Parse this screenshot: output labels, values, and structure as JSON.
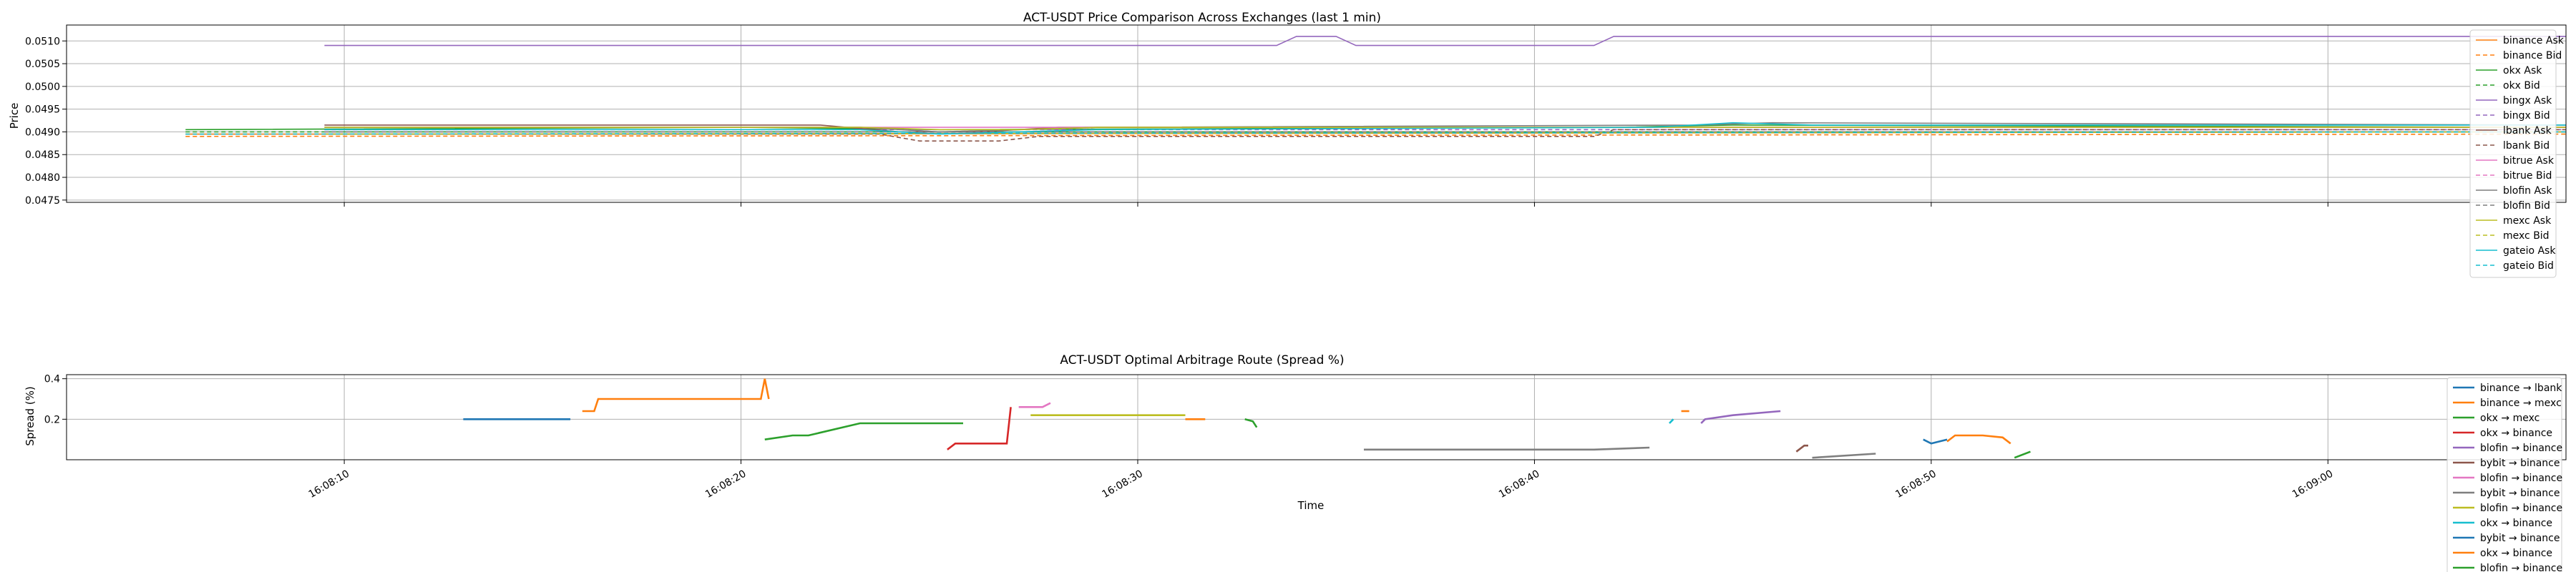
{
  "chart_data": [
    {
      "type": "line",
      "title": "ACT-USDT Price Comparison Across Exchanges (last 1 min)",
      "xlabel": "",
      "ylabel": "Price",
      "ylim": [
        0.04745,
        0.05135
      ],
      "yticks": [
        0.0475,
        0.048,
        0.0485,
        0.049,
        0.0495,
        0.05,
        0.0505,
        0.051
      ],
      "ytick_labels": [
        "0.0475",
        "0.0480",
        "0.0485",
        "0.0490",
        "0.0495",
        "0.0500",
        "0.0505",
        "0.0510"
      ],
      "xlim": [
        "16:08:03",
        "16:09:06"
      ],
      "grid": true,
      "legend": "right",
      "series": [
        {
          "name": "binance Ask",
          "color": "#ff7f0e",
          "dash": false,
          "points": [
            [
              "16:08:06",
              0.04895
            ],
            [
              "16:08:18",
              0.04895
            ],
            [
              "16:09:06",
              0.049
            ]
          ]
        },
        {
          "name": "binance Bid",
          "color": "#ff7f0e",
          "dash": true,
          "points": [
            [
              "16:08:06",
              0.0489
            ],
            [
              "16:09:06",
              0.04895
            ]
          ]
        },
        {
          "name": "okx Ask",
          "color": "#2ca02c",
          "dash": false,
          "points": [
            [
              "16:08:06",
              0.04905
            ],
            [
              "16:08:20",
              0.0491
            ],
            [
              "16:08:25",
              0.04905
            ],
            [
              "16:08:42",
              0.0491
            ],
            [
              "16:08:45",
              0.04915
            ],
            [
              "16:09:06",
              0.0491
            ]
          ]
        },
        {
          "name": "okx Bid",
          "color": "#2ca02c",
          "dash": true,
          "points": [
            [
              "16:08:06",
              0.049
            ],
            [
              "16:09:06",
              0.049
            ]
          ]
        },
        {
          "name": "bingx Ask",
          "color": "#9467bd",
          "dash": false,
          "points": [
            [
              "16:08:09.5",
              0.0509
            ],
            [
              "16:08:33.5",
              0.0509
            ],
            [
              "16:08:34",
              0.0511
            ],
            [
              "16:08:35",
              0.0511
            ],
            [
              "16:08:35.5",
              0.0509
            ],
            [
              "16:08:41.5",
              0.0509
            ],
            [
              "16:08:42",
              0.0511
            ],
            [
              "16:09:06",
              0.0511
            ]
          ]
        },
        {
          "name": "bingx Bid",
          "color": "#9467bd",
          "dash": true,
          "points": [
            [
              "16:08:09.5",
              0.04905
            ],
            [
              "16:09:06",
              0.04905
            ]
          ]
        },
        {
          "name": "lbank Ask",
          "color": "#8c564b",
          "dash": false,
          "points": [
            [
              "16:08:09.5",
              0.04915
            ],
            [
              "16:08:22",
              0.04915
            ],
            [
              "16:08:24",
              0.049
            ],
            [
              "16:08:26",
              0.049
            ],
            [
              "16:08:28",
              0.0491
            ],
            [
              "16:09:06",
              0.0491
            ]
          ]
        },
        {
          "name": "lbank Bid",
          "color": "#8c564b",
          "dash": true,
          "points": [
            [
              "16:08:09.5",
              0.04895
            ],
            [
              "16:08:23.5",
              0.04895
            ],
            [
              "16:08:24.5",
              0.0488
            ],
            [
              "16:08:26.5",
              0.0488
            ],
            [
              "16:08:27.5",
              0.0489
            ],
            [
              "16:08:41.5",
              0.0489
            ],
            [
              "16:08:42",
              0.04905
            ],
            [
              "16:09:06",
              0.04905
            ]
          ]
        },
        {
          "name": "bitrue Ask",
          "color": "#e377c2",
          "dash": false,
          "points": [
            [
              "16:08:09.5",
              0.0491
            ],
            [
              "16:09:06",
              0.0491
            ]
          ]
        },
        {
          "name": "bitrue Bid",
          "color": "#e377c2",
          "dash": true,
          "points": [
            [
              "16:08:09.5",
              0.049
            ],
            [
              "16:09:06",
              0.049
            ]
          ]
        },
        {
          "name": "blofin Ask",
          "color": "#7f7f7f",
          "dash": false,
          "points": [
            [
              "16:08:09.5",
              0.0491
            ],
            [
              "16:08:23",
              0.0491
            ],
            [
              "16:08:25",
              0.049
            ],
            [
              "16:08:27",
              0.04905
            ],
            [
              "16:08:29",
              0.0491
            ],
            [
              "16:08:44",
              0.04915
            ],
            [
              "16:08:46",
              0.0492
            ],
            [
              "16:09:06",
              0.04915
            ]
          ]
        },
        {
          "name": "blofin Bid",
          "color": "#7f7f7f",
          "dash": true,
          "points": [
            [
              "16:08:09.5",
              0.049
            ],
            [
              "16:09:06",
              0.049
            ]
          ]
        },
        {
          "name": "mexc Ask",
          "color": "#bcbd22",
          "dash": false,
          "points": [
            [
              "16:08:09.5",
              0.0491
            ],
            [
              "16:08:23",
              0.0491
            ],
            [
              "16:08:25",
              0.04905
            ],
            [
              "16:08:27",
              0.04905
            ],
            [
              "16:08:29",
              0.0491
            ],
            [
              "16:09:06",
              0.0491
            ]
          ]
        },
        {
          "name": "mexc Bid",
          "color": "#bcbd22",
          "dash": true,
          "points": [
            [
              "16:08:09.5",
              0.04895
            ],
            [
              "16:09:06",
              0.049
            ]
          ]
        },
        {
          "name": "gateio Ask",
          "color": "#17becf",
          "dash": false,
          "points": [
            [
              "16:08:09.5",
              0.04905
            ],
            [
              "16:08:23",
              0.04905
            ],
            [
              "16:08:25",
              0.04895
            ],
            [
              "16:08:27",
              0.049
            ],
            [
              "16:08:29",
              0.04905
            ],
            [
              "16:08:43",
              0.0491
            ],
            [
              "16:08:45",
              0.0492
            ],
            [
              "16:08:47",
              0.04915
            ],
            [
              "16:09:06",
              0.04915
            ]
          ]
        },
        {
          "name": "gateio Bid",
          "color": "#17becf",
          "dash": true,
          "points": [
            [
              "16:08:06",
              0.04895
            ],
            [
              "16:09:06",
              0.049
            ]
          ]
        }
      ]
    },
    {
      "type": "line",
      "title": "ACT-USDT Optimal Arbitrage Route (Spread %)",
      "xlabel": "Time",
      "ylabel": "Spread (%)",
      "ylim": [
        0.0,
        0.42
      ],
      "yticks": [
        0.2,
        0.4
      ],
      "ytick_labels": [
        "0.2",
        "0.4"
      ],
      "xlim": [
        "16:08:03",
        "16:09:06"
      ],
      "xticks": [
        "16:08:10",
        "16:08:20",
        "16:08:30",
        "16:08:40",
        "16:08:50",
        "16:09:00"
      ],
      "xtick_labels": [
        "16:08:10",
        "16:08:20",
        "16:08:30",
        "16:08:40",
        "16:08:50",
        "16:09:00"
      ],
      "grid": true,
      "legend": "right",
      "series": [
        {
          "name": "binance → lbank",
          "color": "#1f77b4",
          "segments": [
            [
              [
                "16:08:13.0",
                0.2
              ],
              [
                "16:08:15.7",
                0.2
              ]
            ]
          ]
        },
        {
          "name": "binance → mexc",
          "color": "#ff7f0e",
          "segments": [
            [
              [
                "16:08:16.0",
                0.24
              ],
              [
                "16:08:16.3",
                0.24
              ],
              [
                "16:08:16.4",
                0.3
              ],
              [
                "16:08:20.5",
                0.3
              ],
              [
                "16:08:20.6",
                0.4
              ],
              [
                "16:08:20.7",
                0.3
              ]
            ],
            [
              [
                "16:08:31.2",
                0.2
              ],
              [
                "16:08:31.7",
                0.2
              ]
            ]
          ]
        },
        {
          "name": "okx → mexc",
          "color": "#2ca02c",
          "segments": [
            [
              [
                "16:08:20.6",
                0.1
              ],
              [
                "16:08:21.3",
                0.12
              ],
              [
                "16:08:21.7",
                0.12
              ],
              [
                "16:08:23.0",
                0.18
              ],
              [
                "16:08:25.6",
                0.18
              ]
            ]
          ]
        },
        {
          "name": "okx → binance",
          "color": "#d62728",
          "segments": [
            [
              [
                "16:08:25.2",
                0.05
              ],
              [
                "16:08:25.4",
                0.08
              ],
              [
                "16:08:26.7",
                0.08
              ],
              [
                "16:08:26.8",
                0.26
              ]
            ]
          ]
        },
        {
          "name": "blofin → binance",
          "color": "#9467bd",
          "segments": [
            [
              [
                "16:08:44.2",
                0.18
              ],
              [
                "16:08:44.3",
                0.2
              ],
              [
                "16:08:45.0",
                0.22
              ],
              [
                "16:08:46.2",
                0.24
              ]
            ]
          ]
        },
        {
          "name": "bybit → binance",
          "color": "#8c564b",
          "segments": [
            [
              [
                "16:08:46.6",
                0.04
              ],
              [
                "16:08:46.8",
                0.07
              ],
              [
                "16:08:46.9",
                0.07
              ]
            ]
          ]
        },
        {
          "name": "blofin → binance",
          "color": "#e377c2",
          "segments": [
            [
              [
                "16:08:27.0",
                0.26
              ],
              [
                "16:08:27.6",
                0.26
              ],
              [
                "16:08:27.8",
                0.28
              ]
            ]
          ]
        },
        {
          "name": "bybit → binance",
          "color": "#7f7f7f",
          "segments": [
            [
              [
                "16:08:35.7",
                0.05
              ],
              [
                "16:08:41.5",
                0.05
              ],
              [
                "16:08:42.9",
                0.06
              ]
            ],
            [
              [
                "16:08:47.0",
                0.01
              ],
              [
                "16:08:48.6",
                0.03
              ]
            ]
          ]
        },
        {
          "name": "blofin → binance",
          "color": "#bcbd22",
          "segments": [
            [
              [
                "16:08:27.3",
                0.22
              ],
              [
                "16:08:31.2",
                0.22
              ]
            ]
          ]
        },
        {
          "name": "okx → binance",
          "color": "#17becf",
          "segments": [
            [
              [
                "16:08:43.4",
                0.18
              ],
              [
                "16:08:43.5",
                0.2
              ]
            ]
          ]
        },
        {
          "name": "bybit → binance",
          "color": "#1f77b4",
          "segments": [
            [
              [
                "16:08:49.8",
                0.1
              ],
              [
                "16:08:50.0",
                0.08
              ],
              [
                "16:08:50.2",
                0.09
              ],
              [
                "16:08:50.4",
                0.1
              ]
            ]
          ]
        },
        {
          "name": "okx → binance",
          "color": "#ff7f0e",
          "segments": [
            [
              [
                "16:08:43.7",
                0.24
              ],
              [
                "16:08:43.9",
                0.24
              ]
            ],
            [
              [
                "16:08:50.4",
                0.09
              ],
              [
                "16:08:50.6",
                0.12
              ],
              [
                "16:08:51.3",
                0.12
              ],
              [
                "16:08:51.8",
                0.11
              ],
              [
                "16:08:52.0",
                0.08
              ]
            ]
          ]
        },
        {
          "name": "blofin → binance",
          "color": "#2ca02c",
          "segments": [
            [
              [
                "16:08:32.7",
                0.2
              ],
              [
                "16:08:32.9",
                0.19
              ],
              [
                "16:08:33.0",
                0.16
              ]
            ],
            [
              [
                "16:08:52.1",
                0.01
              ],
              [
                "16:08:52.5",
                0.04
              ]
            ]
          ]
        }
      ]
    }
  ]
}
